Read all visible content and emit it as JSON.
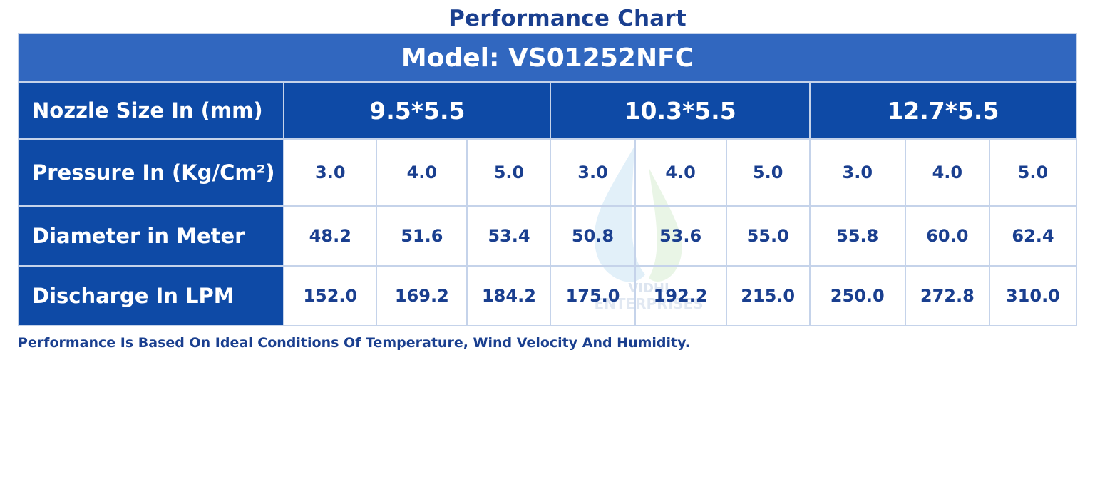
{
  "title": "Performance Chart",
  "model": "Model: VS01252NFC",
  "rows": {
    "nozzle_label": "Nozzle Size In (mm)",
    "pressure_label": "Pressure In (Kg/Cm²)",
    "diameter_label": "Diameter in Meter",
    "discharge_label": "Discharge In LPM"
  },
  "nozzle_sizes": [
    "9.5*5.5",
    "10.3*5.5",
    "12.7*5.5"
  ],
  "pressure": [
    "3.0",
    "4.0",
    "5.0",
    "3.0",
    "4.0",
    "5.0",
    "3.0",
    "4.0",
    "5.0"
  ],
  "diameter": [
    "48.2",
    "51.6",
    "53.4",
    "50.8",
    "53.6",
    "55.0",
    "55.8",
    "60.0",
    "62.4"
  ],
  "discharge": [
    "152.0",
    "169.2",
    "184.2",
    "175.0",
    "192.2",
    "215.0",
    "250.0",
    "272.8",
    "310.0"
  ],
  "footnote": "Performance Is Based On Ideal Conditions Of Temperature, Wind Velocity And Humidity.",
  "watermark": {
    "icon": "water-drop-icon",
    "text_line1": "VIDHI",
    "text_line2": "ENTERPRISES"
  },
  "colors": {
    "header_blue": "#0e4aa6",
    "model_blue": "#3167bf",
    "text_blue": "#1a3f8f",
    "border": "#c5d3ea"
  }
}
